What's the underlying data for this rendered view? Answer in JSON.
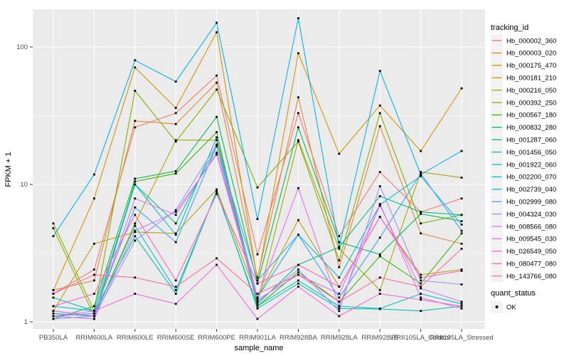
{
  "chart_data": {
    "type": "line",
    "title": "",
    "xlabel": "sample_name",
    "ylabel": "FPKM + 1",
    "y_scale": "log10",
    "y_tick_labels": [
      "1",
      "10",
      "100"
    ],
    "y_tick_values": [
      1,
      10,
      100
    ],
    "y_minor_values": [
      3.1623,
      31.623
    ],
    "grid": "white-major-and-minor-on-gray-panel",
    "panel_bg": "#EBEBEB",
    "grid_color": "#FFFFFF",
    "axis_text_color": "#4D4D4D",
    "axis_title_color": "#000000",
    "point_marker": "black-square",
    "legend_position": "right",
    "legend_title": "tracking_id",
    "legend_key_bg": "#F2F2F2",
    "categories": [
      "PB350LA",
      "RRIM600LA",
      "RRIM600LE",
      "RRIM600SE",
      "RRIM600PE",
      "RRIM901LA",
      "RRIM928BA",
      "RRIM928LA",
      "RRIM928LB",
      "RRII105LA_Control",
      "RRII105LA_Stressed"
    ],
    "series": [
      {
        "name": "Hb_000002_360",
        "color": "#F8766D",
        "values": [
          1.6,
          2.4,
          26,
          33,
          62,
          3.1,
          33,
          4.2,
          12.3,
          6.3,
          7.9
        ]
      },
      {
        "name": "Hb_000003_020",
        "color": "#EA8331",
        "values": [
          1.7,
          2.0,
          29,
          27.5,
          55,
          2.1,
          43,
          2.5,
          26.5,
          4.4,
          3.7
        ]
      },
      {
        "name": "Hb_000175_470",
        "color": "#D89000",
        "values": [
          1.7,
          7.9,
          71,
          36,
          128,
          2.0,
          90,
          16.7,
          37.5,
          17.5,
          50
        ]
      },
      {
        "name": "Hb_000181_210",
        "color": "#C09B00",
        "values": [
          1.2,
          3.7,
          4.5,
          4.4,
          9.2,
          1.5,
          5.5,
          1.8,
          5.8,
          2.2,
          2.4
        ]
      },
      {
        "name": "Hb_000216_050",
        "color": "#A3A500",
        "values": [
          4.8,
          1.1,
          5.2,
          21,
          21,
          1.4,
          21,
          3.4,
          1.7,
          12.3,
          11.2
        ]
      },
      {
        "name": "Hb_000392_250",
        "color": "#7CAE00",
        "values": [
          5.2,
          1.2,
          48,
          20.5,
          49,
          9.5,
          20.5,
          2.8,
          33,
          5.2,
          6.0
        ]
      },
      {
        "name": "Hb_000567_180",
        "color": "#39B600",
        "values": [
          1.1,
          1.05,
          10.5,
          12,
          24,
          1.3,
          2.3,
          1.4,
          3.0,
          1.9,
          4.4
        ]
      },
      {
        "name": "Hb_000832_280",
        "color": "#00BB4E",
        "values": [
          1.05,
          1.3,
          11,
          12.5,
          31,
          1.9,
          26,
          3.8,
          3.1,
          6.1,
          5.4
        ]
      },
      {
        "name": "Hb_001287_060",
        "color": "#00BF7D",
        "values": [
          1.15,
          1.1,
          10,
          5.2,
          19,
          1.35,
          2.6,
          3.5,
          8.2,
          6.3,
          6.0
        ]
      },
      {
        "name": "Hb_001456_050",
        "color": "#00C1A3",
        "values": [
          1.5,
          1.2,
          4.2,
          1.6,
          9.0,
          1.25,
          1.9,
          1.25,
          1.24,
          1.2,
          1.3
        ]
      },
      {
        "name": "Hb_001922_060",
        "color": "#00BFC4",
        "values": [
          1.2,
          1.1,
          5.0,
          1.7,
          8.8,
          1.3,
          2.0,
          1.3,
          1.25,
          1.6,
          1.35
        ]
      },
      {
        "name": "Hb_002200_070",
        "color": "#00BAE0",
        "values": [
          1.3,
          1.2,
          10,
          4.3,
          22,
          1.5,
          4.3,
          2.1,
          7.1,
          11.5,
          5.1
        ]
      },
      {
        "name": "Hb_002739_040",
        "color": "#00B0F6",
        "values": [
          4.2,
          11.8,
          80,
          56,
          150,
          5.6,
          162,
          3.5,
          67,
          11.8,
          17.5
        ]
      },
      {
        "name": "Hb_002999_080",
        "color": "#35A2FF",
        "values": [
          1.1,
          1.15,
          6.8,
          3.8,
          19,
          2.0,
          4.3,
          1.5,
          4.1,
          12.0,
          4.6
        ]
      },
      {
        "name": "Hb_004324_030",
        "color": "#9590FF",
        "values": [
          1.05,
          1.1,
          3.9,
          6.5,
          19.5,
          1.4,
          2.4,
          1.2,
          9.7,
          2.0,
          1.87
        ]
      },
      {
        "name": "Hb_008566_080",
        "color": "#C77CFF",
        "values": [
          1.1,
          1.05,
          4.6,
          6.3,
          16.5,
          1.45,
          2.2,
          1.6,
          7.0,
          1.75,
          1.4
        ]
      },
      {
        "name": "Hb_009545_030",
        "color": "#E76BF3",
        "values": [
          1.2,
          1.1,
          7.9,
          6.0,
          17,
          1.5,
          9.4,
          1.3,
          7.2,
          1.5,
          1.25
        ]
      },
      {
        "name": "Hb_026549_050",
        "color": "#FA62DB",
        "values": [
          1.1,
          1.2,
          1.6,
          1.35,
          2.6,
          1.05,
          1.8,
          1.1,
          1.6,
          1.45,
          1.3
        ]
      },
      {
        "name": "Hb_080477_080",
        "color": "#FF62BC",
        "values": [
          1.3,
          1.6,
          6.0,
          2.0,
          8.5,
          1.9,
          2.6,
          1.8,
          5.8,
          2.1,
          2.35
        ]
      },
      {
        "name": "Hb_143766_080",
        "color": "#FF6A98",
        "values": [
          1.6,
          2.2,
          2.1,
          1.8,
          2.9,
          1.6,
          2.2,
          1.4,
          2.1,
          1.8,
          3.4
        ]
      }
    ],
    "legend2": {
      "title": "quant_status",
      "items": [
        {
          "label": "OK",
          "marker": "black-square"
        }
      ]
    }
  }
}
